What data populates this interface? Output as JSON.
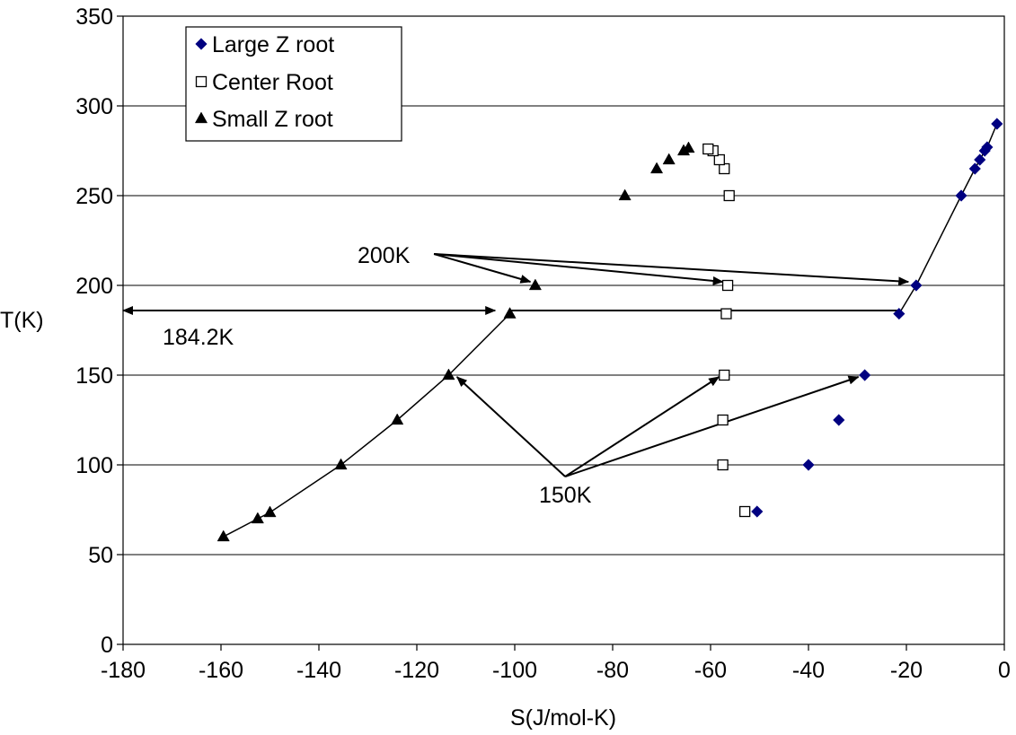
{
  "chart_data": {
    "type": "scatter",
    "title": "",
    "xlabel": "S(J/mol-K)",
    "ylabel": "T(K)",
    "xlim": [
      -180,
      0
    ],
    "ylim": [
      0,
      350
    ],
    "x_ticks": [
      -180,
      -160,
      -140,
      -120,
      -100,
      -80,
      -60,
      -40,
      -20,
      0
    ],
    "y_ticks": [
      0,
      50,
      100,
      150,
      200,
      250,
      300,
      350
    ],
    "grid": "horizontal",
    "legend_position": "top-left",
    "series": [
      {
        "name": "Large Z root",
        "marker": "diamond",
        "color": "#000080",
        "points": [
          [
            -50.5,
            74
          ],
          [
            -40,
            100
          ],
          [
            -33.8,
            125
          ],
          [
            -28.5,
            150
          ],
          [
            -21.5,
            184.2
          ],
          [
            -18,
            200
          ],
          [
            -8.8,
            250
          ],
          [
            -6,
            265
          ],
          [
            -5,
            270
          ],
          [
            -4,
            275
          ],
          [
            -3.5,
            277
          ],
          [
            -1.5,
            290
          ]
        ]
      },
      {
        "name": "Center Root",
        "marker": "square-open",
        "color": "#000000",
        "points": [
          [
            -53,
            74
          ],
          [
            -57.5,
            100
          ],
          [
            -57.5,
            125
          ],
          [
            -57.2,
            150
          ],
          [
            -56.8,
            184.2
          ],
          [
            -56.5,
            200
          ],
          [
            -56.2,
            250
          ],
          [
            -57.2,
            265
          ],
          [
            -58.2,
            270
          ],
          [
            -59.5,
            275
          ],
          [
            -60.5,
            276
          ]
        ]
      },
      {
        "name": "Small Z root",
        "marker": "triangle",
        "color": "#000000",
        "points": [
          [
            -159.5,
            60
          ],
          [
            -152.5,
            70
          ],
          [
            -150,
            73.5
          ],
          [
            -135.5,
            100
          ],
          [
            -124,
            125
          ],
          [
            -113.5,
            150
          ],
          [
            -101,
            184.2
          ],
          [
            -95.8,
            200
          ],
          [
            -77.5,
            250
          ],
          [
            -71,
            265
          ],
          [
            -68.5,
            270
          ],
          [
            -65.5,
            275
          ],
          [
            -64.5,
            276.5
          ]
        ]
      }
    ],
    "annotations": [
      {
        "text": "200K"
      },
      {
        "text": "184.2K"
      },
      {
        "text": "150K"
      }
    ]
  }
}
